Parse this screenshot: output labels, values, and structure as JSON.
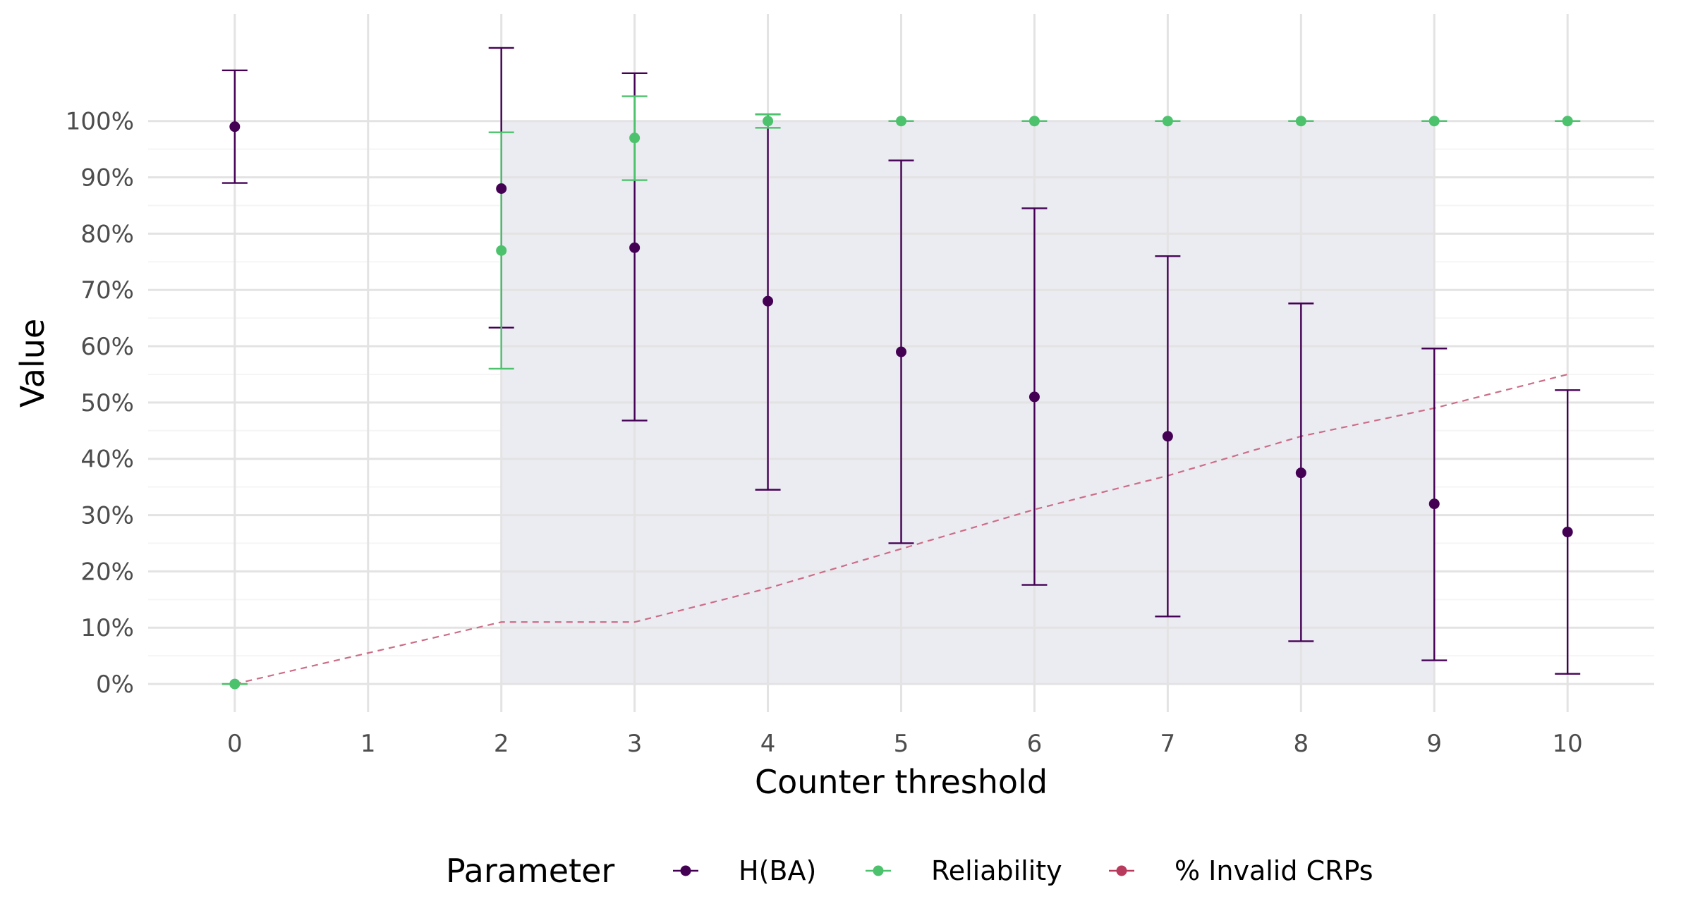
{
  "chart_data": {
    "type": "scatter",
    "title": "",
    "xlabel": "Counter threshold",
    "ylabel": "Value",
    "x_ticks": [
      0,
      1,
      2,
      3,
      4,
      5,
      6,
      7,
      8,
      9,
      10
    ],
    "x_tick_labels": [
      "0",
      "1",
      "2",
      "3",
      "4",
      "5",
      "6",
      "7",
      "8",
      "9",
      "10"
    ],
    "y_ticks": [
      0,
      10,
      20,
      30,
      40,
      50,
      60,
      70,
      80,
      90,
      100
    ],
    "y_tick_labels": [
      "0%",
      "10%",
      "20%",
      "30%",
      "40%",
      "50%",
      "60%",
      "70%",
      "80%",
      "90%",
      "100%"
    ],
    "xlim": [
      -0.65,
      10.65
    ],
    "ylim": [
      -5,
      119
    ],
    "grid": true,
    "shaded_region": {
      "x": [
        2,
        9
      ],
      "y": [
        0,
        100
      ],
      "color": "#ebebf2"
    },
    "legend": {
      "title": "Parameter",
      "position": "bottom",
      "items": [
        {
          "label": "H(BA)",
          "color": "#440154"
        },
        {
          "label": "Reliability",
          "color": "#4cc26c"
        },
        {
          "label": "% Invalid CRPs",
          "color": "#b83b5e"
        }
      ]
    },
    "series": [
      {
        "name": "H(BA)",
        "color": "#440154",
        "style": "points-errorbars",
        "points": [
          {
            "x": 0,
            "y": 99,
            "lower": 89,
            "upper": 109
          },
          {
            "x": 2,
            "y": 88,
            "lower": 63.3,
            "upper": 113
          },
          {
            "x": 3,
            "y": 77.5,
            "lower": 46.8,
            "upper": 108.5
          },
          {
            "x": 4,
            "y": 68,
            "lower": 34.5,
            "upper": 101.2
          },
          {
            "x": 5,
            "y": 59,
            "lower": 25,
            "upper": 93
          },
          {
            "x": 6,
            "y": 51,
            "lower": 17.6,
            "upper": 84.5
          },
          {
            "x": 7,
            "y": 44,
            "lower": 12,
            "upper": 76
          },
          {
            "x": 8,
            "y": 37.5,
            "lower": 7.6,
            "upper": 67.6
          },
          {
            "x": 9,
            "y": 32,
            "lower": 4.2,
            "upper": 59.6
          },
          {
            "x": 10,
            "y": 27,
            "lower": 1.8,
            "upper": 52.2
          }
        ]
      },
      {
        "name": "Reliability",
        "color": "#4cc26c",
        "style": "points-errorbars",
        "points": [
          {
            "x": 0,
            "y": 0,
            "lower": 0,
            "upper": 0
          },
          {
            "x": 2,
            "y": 77,
            "lower": 56,
            "upper": 98
          },
          {
            "x": 3,
            "y": 97,
            "lower": 89.5,
            "upper": 104.4
          },
          {
            "x": 4,
            "y": 100,
            "lower": 98.8,
            "upper": 101.2
          },
          {
            "x": 5,
            "y": 100,
            "lower": 100,
            "upper": 100
          },
          {
            "x": 6,
            "y": 100,
            "lower": 100,
            "upper": 100
          },
          {
            "x": 7,
            "y": 100,
            "lower": 100,
            "upper": 100
          },
          {
            "x": 8,
            "y": 100,
            "lower": 100,
            "upper": 100
          },
          {
            "x": 9,
            "y": 100,
            "lower": 100,
            "upper": 100
          },
          {
            "x": 10,
            "y": 100,
            "lower": 100,
            "upper": 100
          }
        ]
      },
      {
        "name": "% Invalid CRPs",
        "color": "#cc6d87",
        "style": "dashed-line",
        "x": [
          0,
          1,
          2,
          3,
          4,
          5,
          6,
          7,
          8,
          9,
          10
        ],
        "y": [
          0,
          5.5,
          11,
          11,
          17,
          24,
          31,
          37,
          44,
          49,
          55
        ]
      }
    ]
  }
}
